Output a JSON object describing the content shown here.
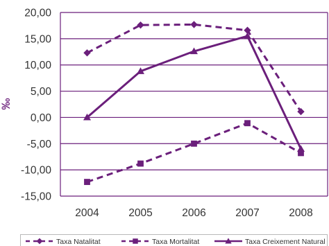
{
  "chart_data": {
    "type": "line",
    "title": "",
    "xlabel": "",
    "ylabel": "‰",
    "categories": [
      "2004",
      "2005",
      "2006",
      "2007",
      "2008"
    ],
    "ylim": [
      -15,
      20
    ],
    "yticks": [
      20,
      15,
      10,
      5,
      0,
      -5,
      -10,
      -15
    ],
    "ytick_labels": [
      "20,00",
      "15,00",
      "10,00",
      "5,00",
      "0,00",
      "-5,00",
      "-10,00",
      "-15,00"
    ],
    "grid": true,
    "legend_position": "bottom",
    "color": "#6b1f7b",
    "series": [
      {
        "name": "Taxa Natalitat",
        "values": [
          12.3,
          17.6,
          17.7,
          16.6,
          1.1
        ],
        "marker": "diamond",
        "line": "dashed"
      },
      {
        "name": "Taxa Mortalitat",
        "values": [
          -12.3,
          -8.8,
          -5.0,
          -1.1,
          -6.8
        ],
        "marker": "square",
        "line": "dashed"
      },
      {
        "name": "Taxa Creixement Natural",
        "values": [
          0.0,
          8.8,
          12.6,
          15.5,
          -6.0
        ],
        "marker": "triangle",
        "line": "solid"
      }
    ]
  }
}
